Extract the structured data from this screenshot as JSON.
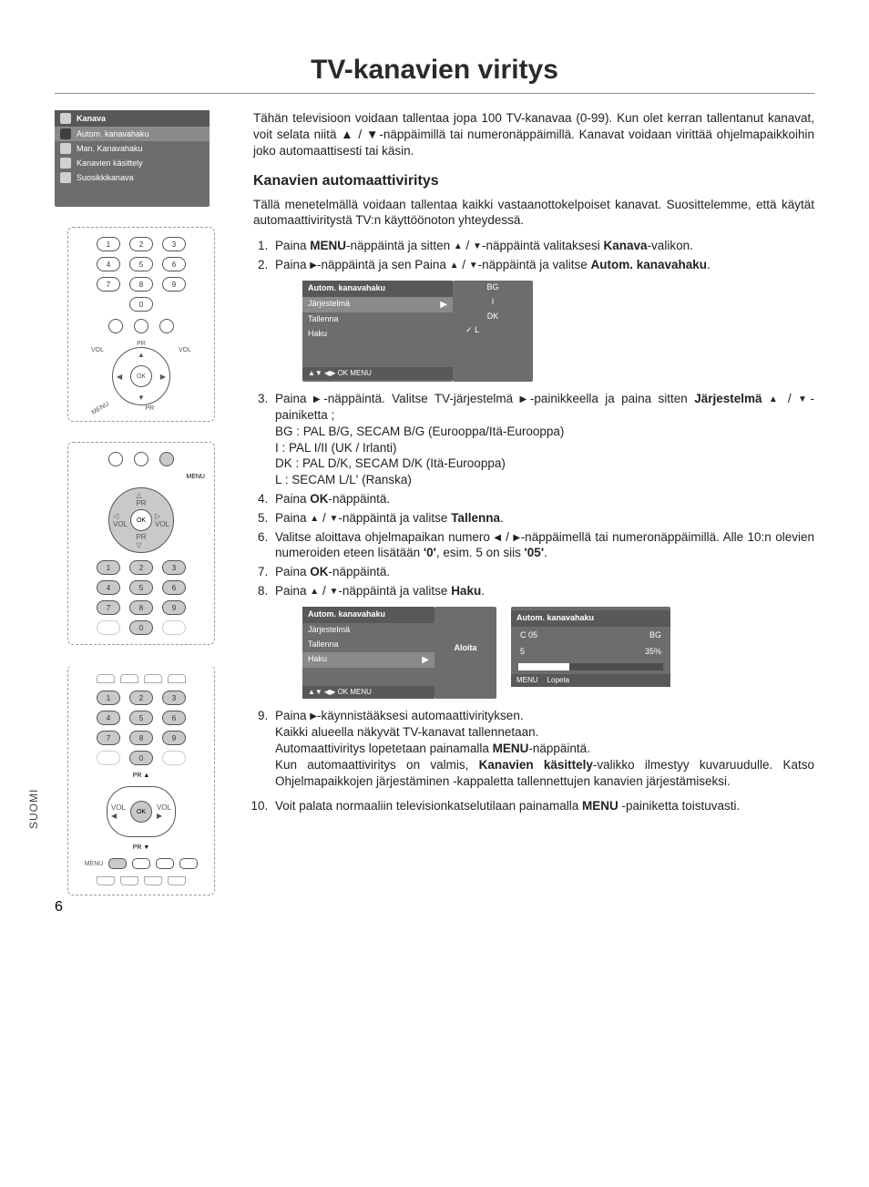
{
  "page": {
    "title": "TV-kanavien viritys",
    "side_label": "SUOMI",
    "number": "6"
  },
  "intro": "Tähän televisioon voidaan tallentaa jopa 100 TV-kanavaa (0-99). Kun olet kerran tallentanut kanavat, voit selata niitä ▲ / ▼-näppäimillä tai numeronäppäimillä. Kanavat voidaan virittää ohjelmapaikkoihin joko automaattisesti tai käsin.",
  "section_h": "Kanavien automaattiviritys",
  "section_p": "Tällä menetelmällä voidaan tallentaa kaikki vastaanottokelpoiset kanavat. Suosittelemme, että käytät automaattiviritystä TV:n käyttöönoton yhteydessä.",
  "steps": {
    "s1": "Paina MENU-näppäintä ja sitten ▲ / ▼-näppäintä valitaksesi Kanava-valikon.",
    "s2": "Paina ▶-näppäintä ja sen Paina ▲ / ▼-näppäintä ja valitse Autom. kanavahaku.",
    "s3": "Paina ▶-näppäintä. Valitse TV-järjestelmä ▶-painikkeella ja paina sitten Järjestelmä ▲ / ▼-painiketta ;",
    "s3_bg": "BG  : PAL B/G, SECAM B/G (Eurooppa/Itä-Eurooppa)",
    "s3_i": "I     : PAL I/II (UK / Irlanti)",
    "s3_dk": "DK  : PAL D/K, SECAM D/K (Itä-Eurooppa)",
    "s3_l": "L    : SECAM L/L' (Ranska)",
    "s4": "Paina OK-näppäintä.",
    "s5": "Paina ▲ / ▼-näppäintä ja valitse Tallenna.",
    "s6": "Valitse aloittava ohjelmapaikan numero ◀ / ▶-näppäimellä tai numeronäppäimillä. Alle 10:n olevien numeroiden eteen lisätään '0', esim. 5 on siis '05'.",
    "s7": "Paina OK-näppäintä.",
    "s8": "Paina ▲ / ▼-näppäintä ja valitse Haku.",
    "s9a": "Paina ▶-käynnistääksesi automaattivirityksen.",
    "s9b": "Kaikki alueella näkyvät TV-kanavat tallennetaan.",
    "s9c": "Automaattiviritys lopetetaan painamalla MENU-näppäintä.",
    "s9d": "Kun automaattiviritys on valmis, Kanavien käsittely-valikko ilmestyy kuvaruudulle. Katso Ohjelmapaikkojen järjestäminen -kappaletta tallennettujen kanavien järjestämiseksi.",
    "s10": "Voit palata normaaliin televisionkatselutilaan painamalla MENU -painiketta toistuvasti."
  },
  "osd_kanava": {
    "header": "Kanava",
    "items": [
      "Autom. kanavahaku",
      "Man. Kanavahaku",
      "Kanavien käsittely",
      "Suosikkikanava"
    ]
  },
  "osd_auto1": {
    "title": "Autom. kanavahaku",
    "rows": [
      "Järjestelmä",
      "Tallenna",
      "Haku"
    ],
    "foot": "▲▼  ◀▶  OK  MENU",
    "sys_opts": [
      "BG",
      "I",
      "DK",
      "L"
    ],
    "checked_idx": 3
  },
  "osd_auto2": {
    "title": "Autom. kanavahaku",
    "rows": [
      "Järjestelmä",
      "Tallenna",
      "Haku"
    ],
    "foot": "▲▼  ◀▶  OK  MENU",
    "aloita": "Aloita",
    "progress": {
      "title": "Autom. kanavahaku",
      "ch": "C 05",
      "sys": "BG",
      "store": "5",
      "pct": "35%",
      "pct_val": 35,
      "foot_menu": "MENU",
      "foot_stop": "Lopeta"
    }
  },
  "remote_labels": {
    "menu": "MENU",
    "ok": "OK",
    "pr": "PR",
    "vol": "VOL"
  },
  "keypad": [
    "1",
    "2",
    "3",
    "4",
    "5",
    "6",
    "7",
    "8",
    "9",
    "",
    "0",
    ""
  ]
}
